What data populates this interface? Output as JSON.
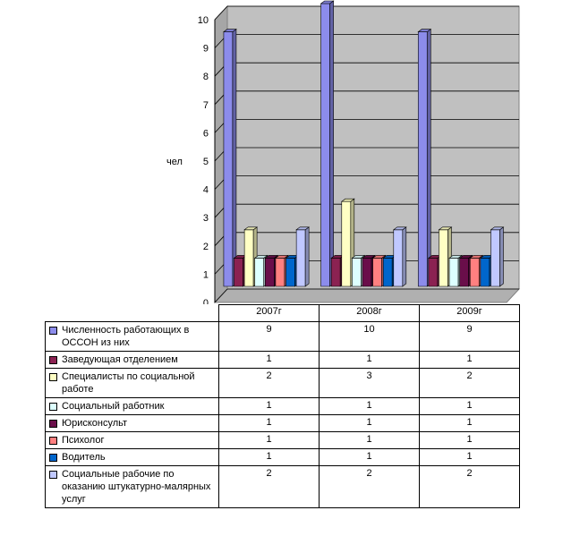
{
  "chart_data": {
    "type": "bar",
    "categories": [
      "2007г",
      "2008г",
      "2009г"
    ],
    "ylabel": "чел",
    "ylim": [
      0,
      10
    ],
    "yticks": [
      "0",
      "1",
      "2",
      "3",
      "4",
      "5",
      "6",
      "7",
      "8",
      "9",
      "10"
    ],
    "grid": true,
    "legend": "table-below",
    "series": [
      {
        "name": "Численность работающих в ОССОН из них",
        "values": [
          9,
          10,
          9
        ],
        "color": "#8C8CEB"
      },
      {
        "name": "Заведующая отделением",
        "values": [
          1,
          1,
          1
        ],
        "color": "#8B2252"
      },
      {
        "name": "Специалисты по социальной работе",
        "values": [
          2,
          3,
          2
        ],
        "color": "#FFFFC4"
      },
      {
        "name": "Социальный работник",
        "values": [
          1,
          1,
          1
        ],
        "color": "#DDFFFF"
      },
      {
        "name": "Юрисконсульт",
        "values": [
          1,
          1,
          1
        ],
        "color": "#6A0E4A"
      },
      {
        "name": "Психолог",
        "values": [
          1,
          1,
          1
        ],
        "color": "#FF8080"
      },
      {
        "name": "Водитель",
        "values": [
          1,
          1,
          1
        ],
        "color": "#0066CC"
      },
      {
        "name": "Социальные рабочие по оказанию штукатурно-малярных услуг",
        "values": [
          2,
          2,
          2
        ],
        "color": "#C0C8FF"
      }
    ]
  }
}
